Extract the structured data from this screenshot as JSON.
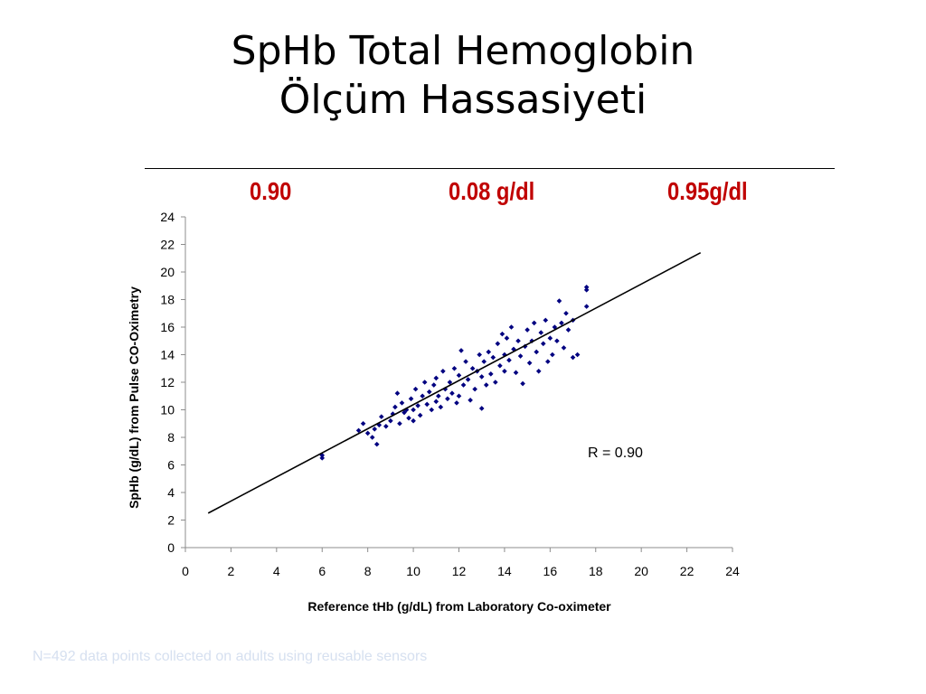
{
  "slide": {
    "title_line1": "SpHb Total Hemoglobin",
    "title_line2": "Ölçüm Hassasiyeti",
    "stats": [
      "0.90",
      "0.08 g/dl",
      "0.95g/dl"
    ],
    "footnote": "N=492 data points collected on adults using reusable sensors"
  },
  "colors": {
    "stat": "#c00000",
    "points": "#000080",
    "line": "#000000"
  },
  "chart_data": {
    "type": "scatter",
    "title": "",
    "xlabel": "Reference tHb (g/dL) from Laboratory Co-oximeter",
    "ylabel": "SpHb (g/dL) from Pulse CO-Oximetry",
    "xlim": [
      0,
      24
    ],
    "ylim": [
      0,
      24
    ],
    "xticks": [
      0,
      2,
      4,
      6,
      8,
      10,
      12,
      14,
      16,
      18,
      20,
      22,
      24
    ],
    "yticks": [
      0,
      2,
      4,
      6,
      8,
      10,
      12,
      14,
      16,
      18,
      20,
      22,
      24
    ],
    "grid": false,
    "annotation": "R = 0.90",
    "regression_line": {
      "x": [
        1.0,
        22.6
      ],
      "y": [
        2.5,
        21.4
      ]
    },
    "series": [
      {
        "points": [
          [
            6.0,
            6.5
          ],
          [
            6.0,
            6.7
          ],
          [
            7.6,
            8.5
          ],
          [
            7.8,
            9.0
          ],
          [
            8.0,
            8.3
          ],
          [
            8.2,
            8.0
          ],
          [
            8.3,
            8.6
          ],
          [
            8.4,
            7.5
          ],
          [
            8.5,
            8.9
          ],
          [
            8.6,
            9.5
          ],
          [
            8.8,
            8.8
          ],
          [
            9.0,
            9.2
          ],
          [
            9.1,
            9.7
          ],
          [
            9.2,
            10.2
          ],
          [
            9.3,
            11.2
          ],
          [
            9.4,
            9.0
          ],
          [
            9.5,
            10.5
          ],
          [
            9.6,
            9.8
          ],
          [
            9.7,
            10.0
          ],
          [
            9.8,
            9.4
          ],
          [
            9.9,
            10.8
          ],
          [
            10.0,
            9.2
          ],
          [
            10.0,
            10.0
          ],
          [
            10.1,
            11.5
          ],
          [
            10.2,
            10.3
          ],
          [
            10.3,
            9.6
          ],
          [
            10.4,
            11.0
          ],
          [
            10.5,
            12.0
          ],
          [
            10.6,
            10.4
          ],
          [
            10.7,
            11.3
          ],
          [
            10.8,
            10.0
          ],
          [
            10.9,
            11.8
          ],
          [
            11.0,
            10.6
          ],
          [
            11.0,
            12.3
          ],
          [
            11.1,
            11.0
          ],
          [
            11.2,
            10.2
          ],
          [
            11.3,
            12.8
          ],
          [
            11.4,
            11.5
          ],
          [
            11.5,
            10.8
          ],
          [
            11.6,
            12.0
          ],
          [
            11.7,
            11.2
          ],
          [
            11.8,
            13.0
          ],
          [
            11.9,
            10.5
          ],
          [
            12.0,
            12.5
          ],
          [
            12.0,
            11.0
          ],
          [
            12.1,
            14.3
          ],
          [
            12.2,
            11.8
          ],
          [
            12.3,
            13.5
          ],
          [
            12.4,
            12.2
          ],
          [
            12.5,
            10.7
          ],
          [
            12.6,
            13.0
          ],
          [
            12.7,
            11.5
          ],
          [
            12.8,
            12.8
          ],
          [
            12.9,
            14.0
          ],
          [
            13.0,
            10.1
          ],
          [
            13.0,
            12.4
          ],
          [
            13.1,
            13.5
          ],
          [
            13.2,
            11.8
          ],
          [
            13.3,
            14.2
          ],
          [
            13.4,
            12.6
          ],
          [
            13.5,
            13.8
          ],
          [
            13.6,
            12.0
          ],
          [
            13.7,
            14.8
          ],
          [
            13.8,
            13.2
          ],
          [
            13.9,
            15.5
          ],
          [
            14.0,
            12.8
          ],
          [
            14.0,
            14.0
          ],
          [
            14.1,
            15.2
          ],
          [
            14.2,
            13.6
          ],
          [
            14.3,
            16.0
          ],
          [
            14.4,
            14.4
          ],
          [
            14.5,
            12.7
          ],
          [
            14.6,
            15.0
          ],
          [
            14.7,
            13.9
          ],
          [
            14.8,
            11.9
          ],
          [
            14.9,
            14.6
          ],
          [
            15.0,
            15.8
          ],
          [
            15.1,
            13.4
          ],
          [
            15.2,
            15.0
          ],
          [
            15.3,
            16.3
          ],
          [
            15.4,
            14.2
          ],
          [
            15.5,
            12.8
          ],
          [
            15.6,
            15.6
          ],
          [
            15.7,
            14.8
          ],
          [
            15.8,
            16.5
          ],
          [
            15.9,
            13.5
          ],
          [
            16.0,
            15.2
          ],
          [
            16.1,
            14.0
          ],
          [
            16.2,
            16.0
          ],
          [
            16.3,
            15.0
          ],
          [
            16.4,
            17.9
          ],
          [
            16.5,
            16.3
          ],
          [
            16.6,
            14.5
          ],
          [
            16.7,
            17.0
          ],
          [
            16.8,
            15.8
          ],
          [
            17.0,
            16.5
          ],
          [
            17.0,
            13.8
          ],
          [
            17.2,
            14.0
          ],
          [
            17.6,
            17.5
          ],
          [
            17.6,
            18.7
          ],
          [
            17.6,
            18.9
          ]
        ]
      }
    ]
  }
}
